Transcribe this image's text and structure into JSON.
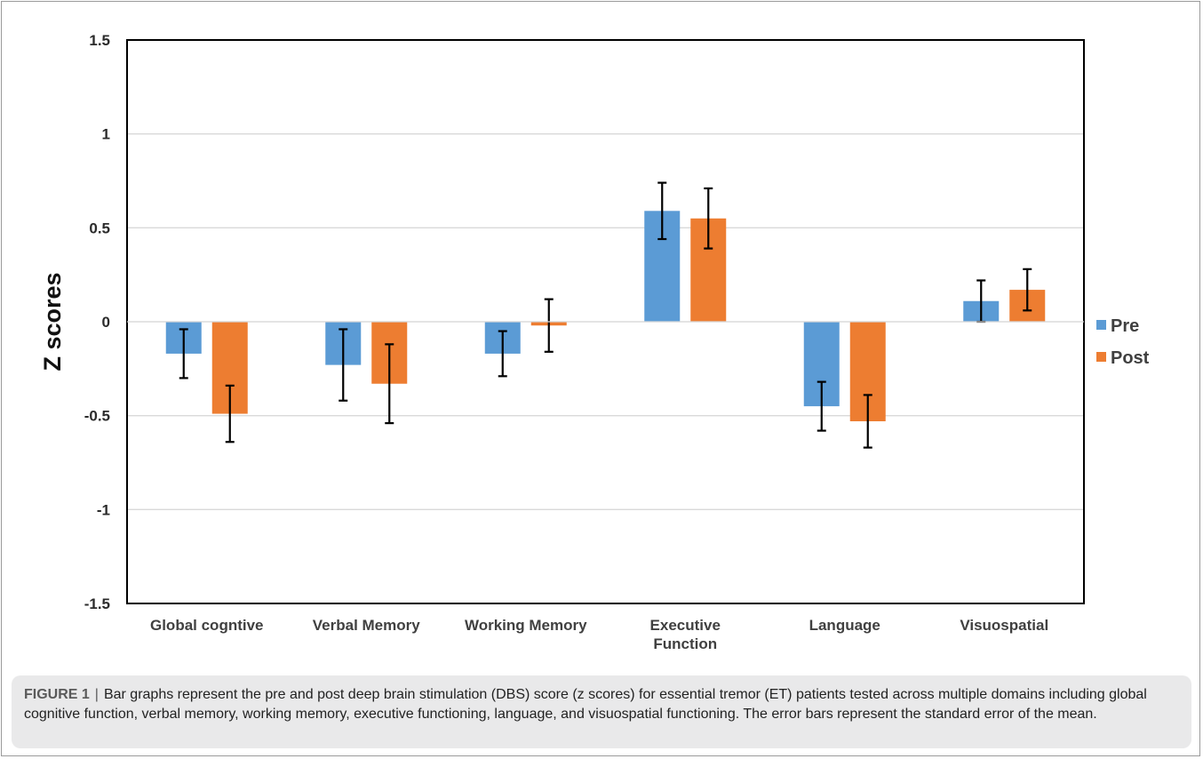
{
  "chart_data": {
    "type": "bar",
    "ylabel": "Z scores",
    "ylim": [
      -1.5,
      1.5
    ],
    "yticks": [
      "1.5",
      "1",
      "0.5",
      "0",
      "-0.5",
      "-1",
      "-1.5"
    ],
    "categories": [
      [
        "Global cogntive"
      ],
      [
        "Verbal Memory"
      ],
      [
        "Working Memory"
      ],
      [
        "Executive",
        "Function"
      ],
      [
        "Language"
      ],
      [
        "Visuospatial"
      ]
    ],
    "series": [
      {
        "name": "Pre",
        "color": "#5b9bd5",
        "values": [
          -0.17,
          -0.23,
          -0.17,
          0.59,
          -0.45,
          0.11
        ],
        "errors": [
          0.13,
          0.19,
          0.12,
          0.15,
          0.13,
          0.11
        ]
      },
      {
        "name": "Post",
        "color": "#ed7d31",
        "values": [
          -0.49,
          -0.33,
          -0.02,
          0.55,
          -0.53,
          0.17
        ],
        "errors": [
          0.15,
          0.21,
          0.14,
          0.16,
          0.14,
          0.11
        ]
      }
    ],
    "grid": true,
    "legend_position": "right"
  },
  "caption": {
    "label": "FIGURE 1",
    "separator": "|",
    "text": "Bar graphs represent the pre and post deep brain stimulation (DBS) score (z scores) for essential tremor (ET) patients tested across multiple domains including global cognitive function, verbal memory, working memory, executive functioning, language, and visuospatial functioning. The error bars represent the standard error of the mean."
  }
}
